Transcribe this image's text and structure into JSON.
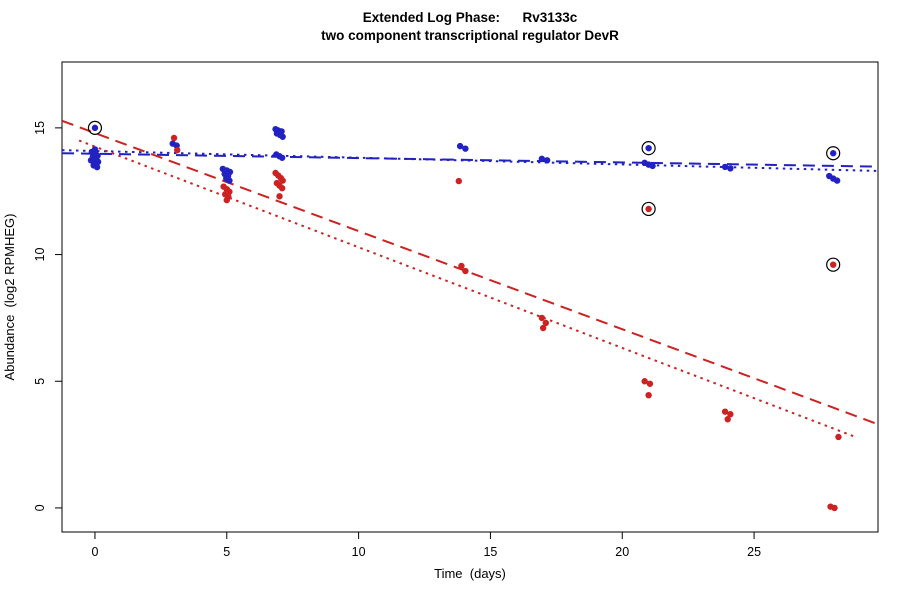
{
  "chart_data": {
    "type": "scatter",
    "title": "Extended Log Phase:      Rv3133c",
    "subtitle": "two component transcriptional regulator DevR",
    "xlabel": "Time  (days)",
    "ylabel": "Abundance  (log2 RPMHEG)",
    "xlim": [
      -1.25,
      29.7
    ],
    "ylim": [
      -0.95,
      17.6
    ],
    "xticks": [
      0,
      5,
      10,
      15,
      20,
      25
    ],
    "yticks": [
      0,
      5,
      10,
      15
    ],
    "grid": false,
    "legend": "none",
    "colors": {
      "blue": "#2222c2",
      "red": "#cc2222",
      "ring": "#000000"
    },
    "series": [
      {
        "name": "blue-points",
        "color": "blue",
        "points": [
          [
            -0.12,
            14.05
          ],
          [
            0.02,
            13.98
          ],
          [
            0.1,
            13.9
          ],
          [
            -0.08,
            13.86
          ],
          [
            0.05,
            13.78
          ],
          [
            -0.15,
            13.72
          ],
          [
            0.12,
            13.66
          ],
          [
            0,
            13.6
          ],
          [
            -0.05,
            13.52
          ],
          [
            0.08,
            13.45
          ],
          [
            0,
            14.15
          ],
          [
            2.95,
            14.38
          ],
          [
            3.1,
            14.3
          ],
          [
            4.85,
            13.38
          ],
          [
            5,
            13.32
          ],
          [
            5.12,
            13.26
          ],
          [
            4.92,
            13.18
          ],
          [
            5.05,
            13.1
          ],
          [
            4.98,
            13.0
          ],
          [
            5.1,
            12.92
          ],
          [
            6.85,
            14.95
          ],
          [
            6.95,
            14.9
          ],
          [
            7.08,
            14.86
          ],
          [
            6.9,
            14.78
          ],
          [
            7.02,
            14.72
          ],
          [
            7.12,
            14.65
          ],
          [
            6.88,
            13.95
          ],
          [
            7,
            13.88
          ],
          [
            7.1,
            13.82
          ],
          [
            13.85,
            14.28
          ],
          [
            14.05,
            14.18
          ],
          [
            16.95,
            13.78
          ],
          [
            17.15,
            13.72
          ],
          [
            20.85,
            13.62
          ],
          [
            21,
            13.55
          ],
          [
            21.15,
            13.5
          ],
          [
            23.9,
            13.46
          ],
          [
            24.1,
            13.4
          ],
          [
            27.85,
            13.1
          ],
          [
            28,
            13.0
          ],
          [
            28.15,
            12.92
          ]
        ]
      },
      {
        "name": "red-points",
        "color": "red",
        "points": [
          [
            3,
            14.6
          ],
          [
            3.12,
            14.12
          ],
          [
            4.88,
            12.68
          ],
          [
            5,
            12.58
          ],
          [
            5.1,
            12.48
          ],
          [
            4.94,
            12.38
          ],
          [
            5.06,
            12.28
          ],
          [
            5,
            12.15
          ],
          [
            6.85,
            13.22
          ],
          [
            6.95,
            13.12
          ],
          [
            7.05,
            13.02
          ],
          [
            7.12,
            12.92
          ],
          [
            6.9,
            12.82
          ],
          [
            7,
            12.72
          ],
          [
            7.1,
            12.62
          ],
          [
            7,
            12.3
          ],
          [
            13.8,
            12.9
          ],
          [
            13.9,
            9.55
          ],
          [
            14.05,
            9.35
          ],
          [
            16.95,
            7.5
          ],
          [
            17.1,
            7.3
          ],
          [
            17,
            7.1
          ],
          [
            20.85,
            5.0
          ],
          [
            21.05,
            4.9
          ],
          [
            21,
            4.45
          ],
          [
            23.9,
            3.8
          ],
          [
            24.1,
            3.7
          ],
          [
            24,
            3.5
          ],
          [
            28.2,
            2.8
          ],
          [
            27.9,
            0.05
          ],
          [
            28.05,
            0.0
          ]
        ]
      }
    ],
    "circled_points": [
      {
        "x": 0,
        "y": 15.0,
        "color": "blue"
      },
      {
        "x": 21,
        "y": 14.2,
        "color": "blue"
      },
      {
        "x": 28,
        "y": 14.0,
        "color": "blue"
      },
      {
        "x": 21,
        "y": 11.8,
        "color": "red"
      },
      {
        "x": 28,
        "y": 9.6,
        "color": "red"
      }
    ],
    "trend_lines": [
      {
        "name": "blue-dashed",
        "color": "blue",
        "style": "dashed",
        "from": [
          -1.25,
          14.0
        ],
        "to": [
          29.7,
          13.47
        ]
      },
      {
        "name": "blue-dotted",
        "color": "blue",
        "style": "dotted",
        "from": [
          -1.25,
          14.12
        ],
        "to": [
          29.7,
          13.3
        ]
      },
      {
        "name": "red-dashed",
        "color": "red",
        "style": "dashed",
        "from": [
          -1.25,
          15.28
        ],
        "to": [
          29.7,
          3.3
        ]
      },
      {
        "name": "red-dotted",
        "color": "red",
        "style": "dotted",
        "from": [
          -0.6,
          14.5
        ],
        "to": [
          28.8,
          2.82
        ]
      }
    ]
  }
}
